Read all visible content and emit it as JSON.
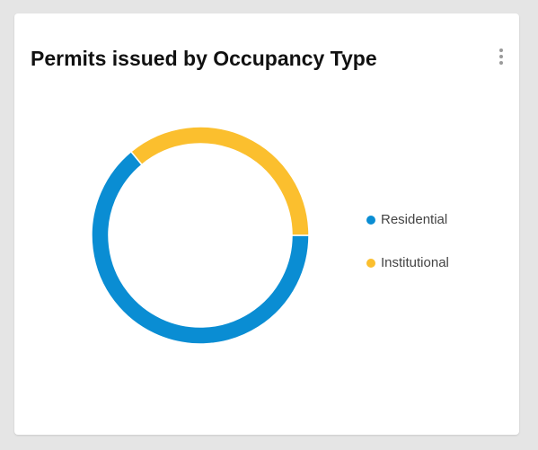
{
  "card": {
    "title": "Permits issued by Occupancy Type",
    "menu_icon": "kebab-menu-icon"
  },
  "chart_data": {
    "type": "pie",
    "variant": "donut",
    "title": "Permits issued by Occupancy Type",
    "categories": [
      "Residential",
      "Institutional"
    ],
    "values": [
      64,
      36
    ],
    "colors": [
      "#0a8dd3",
      "#fbbf2e"
    ],
    "legend_position": "right"
  }
}
